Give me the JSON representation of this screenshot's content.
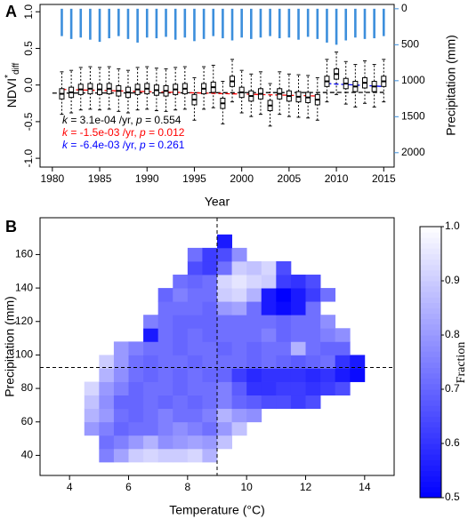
{
  "chart_data": [
    {
      "type": "box",
      "panel_label": "A",
      "xlabel": "Year",
      "ylabel": {
        "main": "NDVI",
        "sup": "*",
        "sub": "diff"
      },
      "y2label": "Precipitation (mm)",
      "x": [
        1981,
        1982,
        1983,
        1984,
        1985,
        1986,
        1987,
        1988,
        1989,
        1990,
        1991,
        1992,
        1993,
        1994,
        1995,
        1996,
        1997,
        1998,
        1999,
        2000,
        2001,
        2002,
        2003,
        2004,
        2005,
        2006,
        2007,
        2008,
        2009,
        2010,
        2011,
        2012,
        2013,
        2014,
        2015
      ],
      "low": [
        -0.4,
        -0.38,
        -0.34,
        -0.33,
        -0.34,
        -0.33,
        -0.36,
        -0.38,
        -0.34,
        -0.33,
        -0.35,
        -0.36,
        -0.34,
        -0.33,
        -0.48,
        -0.33,
        -0.31,
        -0.53,
        -0.23,
        -0.38,
        -0.43,
        -0.4,
        -0.56,
        -0.4,
        -0.43,
        -0.44,
        -0.45,
        -0.48,
        -0.23,
        -0.13,
        -0.26,
        -0.3,
        -0.25,
        -0.3,
        -0.23
      ],
      "q1": [
        -0.19,
        -0.17,
        -0.13,
        -0.12,
        -0.13,
        -0.12,
        -0.15,
        -0.17,
        -0.13,
        -0.12,
        -0.14,
        -0.15,
        -0.13,
        -0.12,
        -0.27,
        -0.12,
        -0.1,
        -0.32,
        -0.02,
        -0.17,
        -0.22,
        -0.19,
        -0.35,
        -0.19,
        -0.22,
        -0.23,
        -0.24,
        -0.27,
        -0.02,
        0.08,
        -0.05,
        -0.09,
        -0.04,
        -0.09,
        -0.02
      ],
      "median": [
        -0.12,
        -0.1,
        -0.06,
        -0.05,
        -0.06,
        -0.05,
        -0.08,
        -0.1,
        -0.06,
        -0.05,
        -0.07,
        -0.08,
        -0.06,
        -0.05,
        -0.2,
        -0.05,
        -0.03,
        -0.25,
        0.05,
        -0.1,
        -0.15,
        -0.12,
        -0.28,
        -0.12,
        -0.15,
        -0.16,
        -0.17,
        -0.2,
        0.05,
        0.15,
        0.02,
        -0.02,
        0.03,
        -0.02,
        0.05
      ],
      "q3": [
        -0.05,
        -0.03,
        0.01,
        0.02,
        0.01,
        0.02,
        -0.01,
        -0.03,
        0.01,
        0.02,
        0,
        -0.01,
        0.01,
        0.02,
        -0.13,
        0.02,
        0.04,
        -0.18,
        0.12,
        -0.03,
        -0.08,
        -0.05,
        -0.21,
        -0.05,
        -0.08,
        -0.09,
        -0.1,
        -0.13,
        0.12,
        0.22,
        0.09,
        0.05,
        0.1,
        0.05,
        0.12
      ],
      "high": [
        0.18,
        0.2,
        0.24,
        0.25,
        0.24,
        0.25,
        0.22,
        0.2,
        0.24,
        0.25,
        0.23,
        0.22,
        0.24,
        0.25,
        0.1,
        0.25,
        0.27,
        0.05,
        0.35,
        0.2,
        0.15,
        0.18,
        0.02,
        0.18,
        0.15,
        0.14,
        0.13,
        0.1,
        0.35,
        0.45,
        0.32,
        0.28,
        0.33,
        0.28,
        0.35
      ],
      "box_color": "#000000",
      "precipitation": {
        "axis": "y2",
        "color": "#3d8fdc",
        "values": [
          380,
          420,
          400,
          430,
          460,
          410,
          380,
          420,
          470,
          400,
          410,
          390,
          430,
          400,
          450,
          420,
          380,
          410,
          440,
          400,
          420,
          400,
          380,
          410,
          400,
          430,
          390,
          420,
          470,
          500,
          440,
          400,
          420,
          410,
          380
        ]
      },
      "trend_lines": [
        {
          "color": "#000000",
          "x": [
            1980,
            2015
          ],
          "y": [
            -0.11,
            -0.1
          ]
        },
        {
          "color": "#ff0000",
          "x": [
            1981,
            2008
          ],
          "y": [
            -0.06,
            -0.15
          ]
        },
        {
          "color": "#0000ff",
          "x": [
            2009,
            2015
          ],
          "y": [
            0.02,
            -0.02
          ]
        }
      ],
      "annotations": [
        {
          "color": "#000000",
          "parts": [
            "k",
            " = 3.1e-04 /yr, ",
            "p",
            " = 0.554"
          ]
        },
        {
          "color": "#ff0000",
          "parts": [
            "k",
            " = -1.5e-03 /yr, ",
            "p",
            " = 0.012"
          ]
        },
        {
          "color": "#0000ff",
          "parts": [
            "k",
            " = -6.4e-03 /yr, ",
            "p",
            " = 0.261"
          ]
        }
      ],
      "xlim": [
        1978.7,
        2016.1
      ],
      "xticks": [
        1980,
        1985,
        1990,
        1995,
        2000,
        2005,
        2010,
        2015
      ],
      "ylim": [
        -1.12,
        1.1
      ],
      "yticks": [
        {
          "value": -1,
          "label": "-1.0"
        },
        -0.5,
        {
          "value": 0,
          "label": "0.0"
        },
        0.5,
        {
          "value": 1,
          "label": "1.0"
        }
      ],
      "y2lim": [
        2200,
        -60
      ],
      "y2ticks": [
        0,
        500,
        1000,
        1500,
        2000
      ]
    },
    {
      "type": "heatmap",
      "panel_label": "B",
      "xlabel": "Temperature (°C)",
      "ylabel": "Precipitation (mm)",
      "colorbar_label": "Fraction",
      "cmap": [
        "#0000ff",
        "#ffffff"
      ],
      "clim": [
        0.5,
        1
      ],
      "cticks": [
        0.5,
        0.6,
        0.7,
        0.8,
        0.9,
        {
          "value": 1,
          "label": "1.0"
        }
      ],
      "x_edges": [
        4.5,
        5,
        5.5,
        6,
        6.5,
        7,
        7.5,
        8,
        8.5,
        9,
        9.5,
        10,
        10.5,
        11,
        11.5,
        12,
        12.5,
        13,
        13.5,
        14
      ],
      "y_edges": [
        36,
        44,
        52,
        60,
        68,
        76,
        84,
        92,
        100,
        108,
        116,
        124,
        132,
        140,
        148,
        156,
        164,
        172
      ],
      "z": [
        [
          null,
          0.75,
          0.82,
          0.9,
          0.92,
          0.9,
          0.9,
          0.92,
          0.85,
          null,
          null,
          null,
          null,
          null,
          null,
          null,
          null,
          null,
          null
        ],
        [
          null,
          0.72,
          0.75,
          0.8,
          0.85,
          0.78,
          0.8,
          0.82,
          0.8,
          0.88,
          null,
          null,
          null,
          null,
          null,
          null,
          null,
          null,
          null
        ],
        [
          0.8,
          0.75,
          0.7,
          0.72,
          0.72,
          0.75,
          0.78,
          0.75,
          0.72,
          0.8,
          0.88,
          null,
          null,
          null,
          null,
          null,
          null,
          null,
          null
        ],
        [
          0.85,
          0.8,
          0.72,
          0.7,
          0.72,
          0.75,
          0.72,
          0.72,
          0.75,
          0.85,
          0.8,
          0.78,
          null,
          null,
          null,
          null,
          null,
          null,
          null
        ],
        [
          0.88,
          0.78,
          0.7,
          0.7,
          0.72,
          0.7,
          0.72,
          0.7,
          0.72,
          0.75,
          0.7,
          0.68,
          0.65,
          0.65,
          0.62,
          0.65,
          null,
          null,
          null
        ],
        [
          0.92,
          0.8,
          0.75,
          0.7,
          0.72,
          0.72,
          0.7,
          0.72,
          0.72,
          0.75,
          0.68,
          0.6,
          0.6,
          0.62,
          0.62,
          0.6,
          0.62,
          0.65,
          null
        ],
        [
          null,
          0.85,
          0.78,
          0.72,
          0.7,
          0.72,
          0.7,
          0.72,
          0.7,
          0.7,
          0.62,
          0.58,
          0.6,
          0.6,
          0.6,
          0.58,
          0.6,
          0.55,
          0.52
        ],
        [
          null,
          0.9,
          0.8,
          0.72,
          0.7,
          0.72,
          0.72,
          0.7,
          0.72,
          0.72,
          0.72,
          0.7,
          0.72,
          0.7,
          0.68,
          0.7,
          0.72,
          0.6,
          0.55
        ],
        [
          null,
          null,
          0.8,
          0.75,
          0.72,
          0.72,
          0.7,
          0.72,
          0.72,
          0.7,
          0.72,
          0.7,
          0.72,
          0.72,
          0.85,
          0.72,
          0.7,
          0.7,
          null
        ],
        [
          null,
          null,
          null,
          null,
          0.55,
          0.72,
          0.7,
          0.72,
          0.7,
          0.72,
          0.72,
          0.72,
          0.75,
          0.7,
          0.72,
          0.72,
          0.75,
          0.78,
          null
        ],
        [
          null,
          null,
          null,
          null,
          0.75,
          0.72,
          0.7,
          0.7,
          0.7,
          0.72,
          0.72,
          0.72,
          0.72,
          0.7,
          0.72,
          0.72,
          0.78,
          null,
          null
        ],
        [
          null,
          null,
          null,
          null,
          null,
          0.72,
          0.72,
          0.72,
          0.7,
          0.8,
          0.82,
          0.72,
          0.55,
          0.52,
          0.55,
          0.72,
          null,
          null,
          null
        ],
        [
          null,
          null,
          null,
          null,
          null,
          0.7,
          0.75,
          0.72,
          0.72,
          0.9,
          0.92,
          0.85,
          0.55,
          0.5,
          0.55,
          0.62,
          0.72,
          null,
          null
        ],
        [
          null,
          null,
          null,
          null,
          null,
          null,
          0.72,
          0.7,
          0.72,
          0.92,
          0.95,
          0.92,
          0.9,
          0.62,
          0.6,
          0.65,
          null,
          null,
          null
        ],
        [
          null,
          null,
          null,
          null,
          null,
          null,
          null,
          0.65,
          0.62,
          0.72,
          0.9,
          0.88,
          0.92,
          0.65,
          null,
          null,
          null,
          null,
          null
        ],
        [
          null,
          null,
          null,
          null,
          null,
          null,
          null,
          0.72,
          0.62,
          0.65,
          0.78,
          null,
          null,
          null,
          null,
          null,
          null,
          null,
          null
        ],
        [
          null,
          null,
          null,
          null,
          null,
          null,
          null,
          null,
          null,
          0.55,
          null,
          null,
          null,
          null,
          null,
          null,
          null,
          null,
          null
        ]
      ],
      "vline": 9,
      "hline": 92.5,
      "xlim": [
        3,
        15
      ],
      "xticks": [
        4,
        6,
        8,
        10,
        12,
        14
      ],
      "ylim": [
        28,
        182
      ],
      "yticks": [
        40,
        60,
        80,
        100,
        120,
        140,
        160
      ]
    }
  ]
}
